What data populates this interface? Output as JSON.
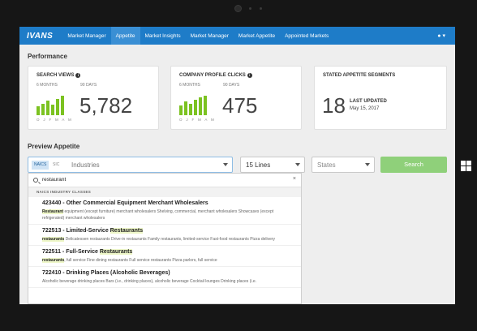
{
  "nav": {
    "logo": "IVANS",
    "items": [
      {
        "label": "Market Manager",
        "active": false
      },
      {
        "label": "Appetite",
        "active": true
      },
      {
        "label": "Market Insights",
        "active": false
      },
      {
        "label": "Market Manager",
        "active": false
      },
      {
        "label": "Market Appetite",
        "active": false
      },
      {
        "label": "Appointed Markets",
        "active": false
      }
    ],
    "user_icon": "user-icon"
  },
  "performance": {
    "title": "Performance",
    "search_views": {
      "title": "SEARCH VIEWS",
      "period_label": "6 MONTHS",
      "days_label": "90 DAYS",
      "value": "5,782",
      "months": "O J F M A M",
      "bars": [
        0.45,
        0.6,
        0.75,
        0.55,
        0.85,
        1.0
      ]
    },
    "profile_clicks": {
      "title": "COMPANY PROFILE CLICKS",
      "period_label": "6 MONTHS",
      "days_label": "90 DAYS",
      "value": "475",
      "months": "O J F M A M",
      "bars": [
        0.5,
        0.7,
        0.6,
        0.8,
        0.9,
        1.0
      ]
    },
    "appetite_segments": {
      "title": "STATED APPETITE SEGMENTS",
      "value": "18",
      "updated_label": "LAST UPDATED",
      "updated_date": "May 15, 2017"
    }
  },
  "preview": {
    "title": "Preview Appetite",
    "naics_label": "NAICS",
    "sic_label": "SIC",
    "industries_placeholder": "Industries",
    "lines_value": "15 Lines",
    "states_placeholder": "States",
    "search_label": "Search"
  },
  "dropdown": {
    "query": "restaurant",
    "header": "NAICS INDUSTRY CLASSES",
    "results": [
      {
        "code_title": "423440 - Other Commercial Equipment Merchant Wholesalers",
        "highlight": "",
        "desc_pre": "",
        "desc_mark": "Restaurant",
        "desc_post": " equipment (except furniture) merchant wholesalers Shelving, commercial, merchant wholesalers Showcases (except refrigerated) merchant wholesalers"
      },
      {
        "code_title": "722513 - Limited-Service ",
        "highlight": "Restaurants",
        "desc_pre": "",
        "desc_mark": "restaurants",
        "desc_post": " Delicatessen restaurants Drive-in restaurants Family restaurants, limited-service Fast-food restaurants Pizza delivery"
      },
      {
        "code_title": "722511 - Full-Service ",
        "highlight": "Restaurants",
        "desc_pre": "",
        "desc_mark": "restaurants",
        "desc_post": ", full service Fine dining restaurants Full service restaurants Pizza parlors, full service"
      },
      {
        "code_title": "722410 - Drinking Places (Alcoholic Beverages)",
        "highlight": "",
        "desc_pre": "Alcoholic beverage drinking places Bars (i.e., drinking places), alcoholic beverage Cocktail lounges Drinking places (i.e.",
        "desc_mark": "",
        "desc_post": ""
      }
    ]
  },
  "colors": {
    "navbar": "#1e7cc8",
    "bar_green": "#7cc221",
    "search_button": "#8fd07a"
  }
}
